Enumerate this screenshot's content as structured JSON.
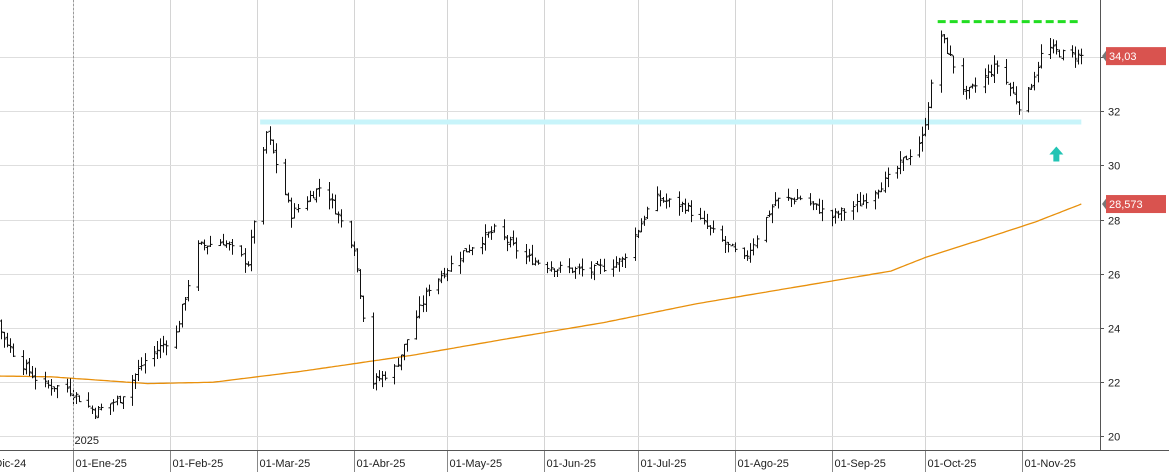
{
  "chart_data": {
    "type": "ohlc",
    "xlabel": "",
    "ylabel": "",
    "ylim": [
      19.5,
      36.1
    ],
    "y_ticks": [
      20,
      22,
      24,
      26,
      28,
      30,
      32,
      34
    ],
    "x_ticks": [
      {
        "label": "01-Dic-24",
        "date": "2024-12-01"
      },
      {
        "label": "01-Ene-25",
        "date": "2025-01-01"
      },
      {
        "label": "01-Feb-25",
        "date": "2025-02-01"
      },
      {
        "label": "01-Mar-25",
        "date": "2025-03-01"
      },
      {
        "label": "01-Abr-25",
        "date": "2025-04-01"
      },
      {
        "label": "01-May-25",
        "date": "2025-05-01"
      },
      {
        "label": "01-Jun-25",
        "date": "2025-06-01"
      },
      {
        "label": "01-Jul-25",
        "date": "2025-07-01"
      },
      {
        "label": "01-Ago-25",
        "date": "2025-08-01"
      },
      {
        "label": "01-Sep-25",
        "date": "2025-09-01"
      },
      {
        "label": "01-Oct-25",
        "date": "2025-10-01"
      },
      {
        "label": "01-Nov-25",
        "date": "2025-11-01"
      }
    ],
    "year_marker": {
      "label": "2025",
      "date": "2025-01-01"
    },
    "price_anchors": [
      [
        "2024-11-26",
        23.4
      ],
      [
        "2024-12-06",
        24.4
      ],
      [
        "2024-12-14",
        22.9
      ],
      [
        "2024-12-22",
        21.9
      ],
      [
        "2024-12-30",
        21.8
      ],
      [
        "2025-01-08",
        20.9
      ],
      [
        "2025-01-16",
        21.4
      ],
      [
        "2025-01-24",
        22.8
      ],
      [
        "2025-02-03",
        23.8
      ],
      [
        "2025-02-10",
        27.0
      ],
      [
        "2025-02-18",
        27.2
      ],
      [
        "2025-02-26",
        26.4
      ],
      [
        "2025-03-04",
        31.2
      ],
      [
        "2025-03-12",
        28.2
      ],
      [
        "2025-03-22",
        29.3
      ],
      [
        "2025-04-01",
        27.0
      ],
      [
        "2025-04-07",
        22.0
      ],
      [
        "2025-04-14",
        22.5
      ],
      [
        "2025-04-25",
        25.5
      ],
      [
        "2025-05-06",
        26.8
      ],
      [
        "2025-05-16",
        27.6
      ],
      [
        "2025-05-26",
        26.6
      ],
      [
        "2025-06-05",
        26.2
      ],
      [
        "2025-06-16",
        26.1
      ],
      [
        "2025-06-26",
        26.5
      ],
      [
        "2025-07-06",
        28.8
      ],
      [
        "2025-07-16",
        28.5
      ],
      [
        "2025-07-26",
        27.4
      ],
      [
        "2025-08-04",
        26.5
      ],
      [
        "2025-08-14",
        28.7
      ],
      [
        "2025-08-22",
        28.8
      ],
      [
        "2025-09-01",
        28.1
      ],
      [
        "2025-09-10",
        28.6
      ],
      [
        "2025-09-20",
        29.6
      ],
      [
        "2025-09-30",
        31.0
      ],
      [
        "2025-10-06",
        34.8
      ],
      [
        "2025-10-14",
        32.6
      ],
      [
        "2025-10-24",
        33.7
      ],
      [
        "2025-11-01",
        32.0
      ],
      [
        "2025-11-08",
        34.4
      ],
      [
        "2025-11-14",
        34.1
      ],
      [
        "2025-11-20",
        34.03
      ]
    ],
    "moving_average": {
      "color": "#e8900c",
      "anchors": [
        [
          "2024-11-26",
          22.25
        ],
        [
          "2024-12-25",
          22.2
        ],
        [
          "2025-01-25",
          21.95
        ],
        [
          "2025-02-15",
          22.0
        ],
        [
          "2025-03-15",
          22.4
        ],
        [
          "2025-04-20",
          23.0
        ],
        [
          "2025-05-20",
          23.6
        ],
        [
          "2025-06-20",
          24.2
        ],
        [
          "2025-07-20",
          24.9
        ],
        [
          "2025-08-20",
          25.5
        ],
        [
          "2025-09-20",
          26.1
        ],
        [
          "2025-10-01",
          26.6
        ],
        [
          "2025-10-20",
          27.3
        ],
        [
          "2025-11-05",
          27.9
        ],
        [
          "2025-11-20",
          28.573
        ]
      ]
    },
    "current_price": {
      "label": "34,03",
      "value": 34.03,
      "color": "#d9534f"
    },
    "ma_value": {
      "label": "28,573",
      "value": 28.573,
      "color": "#d9534f"
    },
    "resistance_line": {
      "value": 35.3,
      "from": "2025-10-05",
      "to": "2025-11-20",
      "color": "#22dd22"
    },
    "support_band": {
      "value": 31.6,
      "from": "2025-03-02",
      "to": "2025-11-20",
      "color": "#c8f4fa"
    },
    "arrow_marker": {
      "value": 30.4,
      "date": "2025-11-12",
      "color": "#22c4b4"
    }
  }
}
